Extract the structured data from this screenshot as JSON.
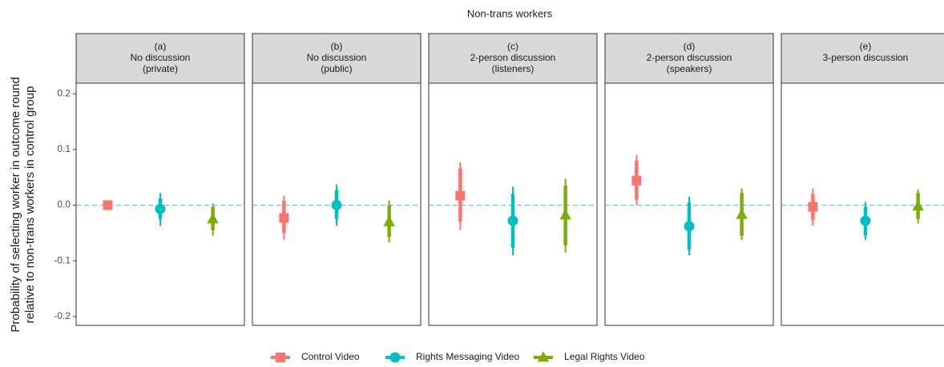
{
  "chart_data": {
    "type": "pointrange",
    "title": "Non-trans workers",
    "ylabel": [
      "Probability of selecting worker in outcome round",
      "relative to non-trans workers in control group"
    ],
    "panels": [
      [
        "(a)",
        "No discussion",
        "(private)"
      ],
      [
        "(b)",
        "No discussion",
        "(public)"
      ],
      [
        "(c)",
        "2-person discussion",
        "(listeners)"
      ],
      [
        "(d)",
        "2-person discussion",
        "(speakers)"
      ],
      [
        "(e)",
        "3-person discussion"
      ]
    ],
    "ylim": [
      -0.216,
      0.219
    ],
    "yticks": [
      -0.2,
      -0.1,
      {
        "value": 0,
        "label": "0.0"
      },
      0.1,
      0.2
    ],
    "hline": 0,
    "grid": false,
    "legend": "bottom",
    "series": [
      {
        "name": "Control Video",
        "color": "#F8766D",
        "shape": "square",
        "values": [
          0,
          -0.023,
          0.017,
          0.044,
          -0.003
        ],
        "inner": [
          null,
          [
            -0.05,
            0.008
          ],
          [
            -0.03,
            0.066
          ],
          [
            0.01,
            0.08
          ],
          [
            -0.027,
            0.02
          ]
        ],
        "outer": [
          null,
          [
            -0.062,
            0.017
          ],
          [
            -0.045,
            0.077
          ],
          [
            0,
            0.09
          ],
          [
            -0.037,
            0.03
          ]
        ]
      },
      {
        "name": "Rights Messaging Video",
        "color": "#00BFC4",
        "shape": "circle",
        "values": [
          -0.007,
          0,
          -0.028,
          -0.038,
          -0.028
        ],
        "inner": [
          [
            -0.025,
            0.012
          ],
          [
            -0.025,
            0.027
          ],
          [
            -0.077,
            0.02
          ],
          [
            -0.08,
            0.005
          ],
          [
            -0.055,
            -0.003
          ]
        ],
        "outer": [
          [
            -0.037,
            0.022
          ],
          [
            -0.037,
            0.037
          ],
          [
            -0.09,
            0.033
          ],
          [
            -0.09,
            0.015
          ],
          [
            -0.063,
            0.006
          ]
        ]
      },
      {
        "name": "Legal Rights Video",
        "color": "#7CAE00",
        "shape": "triangle",
        "values": [
          -0.025,
          -0.03,
          -0.018,
          -0.017,
          -0.002
        ],
        "inner": [
          [
            -0.045,
            -0.003
          ],
          [
            -0.057,
            0
          ],
          [
            -0.072,
            0.035
          ],
          [
            -0.055,
            0.022
          ],
          [
            -0.025,
            0.022
          ]
        ],
        "outer": [
          [
            -0.055,
            0.003
          ],
          [
            -0.067,
            0.008
          ],
          [
            -0.085,
            0.047
          ],
          [
            -0.063,
            0.03
          ],
          [
            -0.033,
            0.028
          ]
        ]
      }
    ]
  }
}
